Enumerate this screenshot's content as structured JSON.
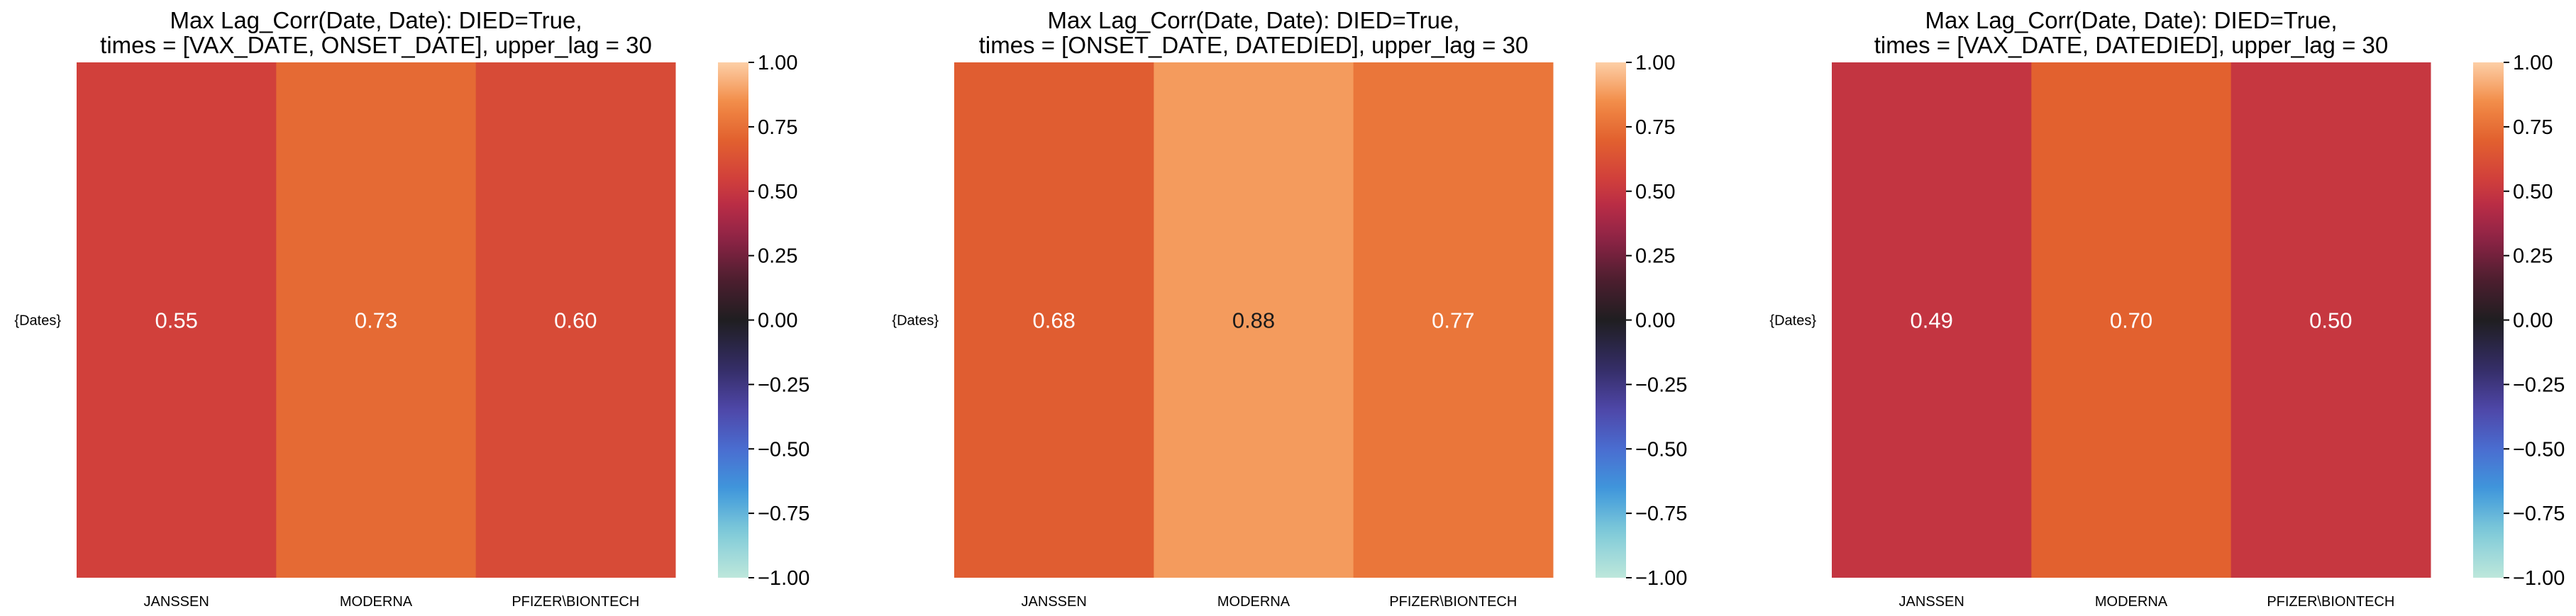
{
  "chart_data": [
    {
      "type": "heatmap",
      "title": "Max Lag_Corr(Date, Date): DIED=True,\ntimes = [VAX_DATE, ONSET_DATE], upper_lag = 30",
      "row_labels": [
        "{Dates}"
      ],
      "col_labels": [
        "JANSSEN",
        "MODERNA",
        "PFIZER\\BIONTECH"
      ],
      "values": [
        [
          0.55,
          0.73,
          0.6
        ]
      ],
      "annotations": [
        "0.55",
        "0.73",
        "0.60"
      ],
      "colorbar": {
        "vmin": -1.0,
        "vmax": 1.0,
        "ticks": [
          1.0,
          0.75,
          0.5,
          0.25,
          0.0,
          -0.25,
          -0.5,
          -0.75,
          -1.0
        ],
        "tick_labels": [
          "1.00",
          "0.75",
          "0.50",
          "0.25",
          "0.00",
          "−0.25",
          "−0.50",
          "−0.75",
          "−1.00"
        ],
        "colormap": "icefire"
      }
    },
    {
      "type": "heatmap",
      "title": "Max Lag_Corr(Date, Date): DIED=True,\ntimes = [ONSET_DATE, DATEDIED], upper_lag = 30",
      "row_labels": [
        "{Dates}"
      ],
      "col_labels": [
        "JANSSEN",
        "MODERNA",
        "PFIZER\\BIONTECH"
      ],
      "values": [
        [
          0.68,
          0.88,
          0.77
        ]
      ],
      "annotations": [
        "0.68",
        "0.88",
        "0.77"
      ],
      "colorbar": {
        "vmin": -1.0,
        "vmax": 1.0,
        "ticks": [
          1.0,
          0.75,
          0.5,
          0.25,
          0.0,
          -0.25,
          -0.5,
          -0.75,
          -1.0
        ],
        "tick_labels": [
          "1.00",
          "0.75",
          "0.50",
          "0.25",
          "0.00",
          "−0.25",
          "−0.50",
          "−0.75",
          "−1.00"
        ],
        "colormap": "icefire"
      }
    },
    {
      "type": "heatmap",
      "title": "Max Lag_Corr(Date, Date): DIED=True,\ntimes = [VAX_DATE, DATEDIED], upper_lag = 30",
      "row_labels": [
        "{Dates}"
      ],
      "col_labels": [
        "JANSSEN",
        "MODERNA",
        "PFIZER\\BIONTECH"
      ],
      "values": [
        [
          0.49,
          0.7,
          0.5
        ]
      ],
      "annotations": [
        "0.49",
        "0.70",
        "0.50"
      ],
      "colorbar": {
        "vmin": -1.0,
        "vmax": 1.0,
        "ticks": [
          1.0,
          0.75,
          0.5,
          0.25,
          0.0,
          -0.25,
          -0.5,
          -0.75,
          -1.0
        ],
        "tick_labels": [
          "1.00",
          "0.75",
          "0.50",
          "0.25",
          "0.00",
          "−0.25",
          "−0.50",
          "−0.75",
          "−1.00"
        ],
        "colormap": "icefire"
      }
    }
  ]
}
